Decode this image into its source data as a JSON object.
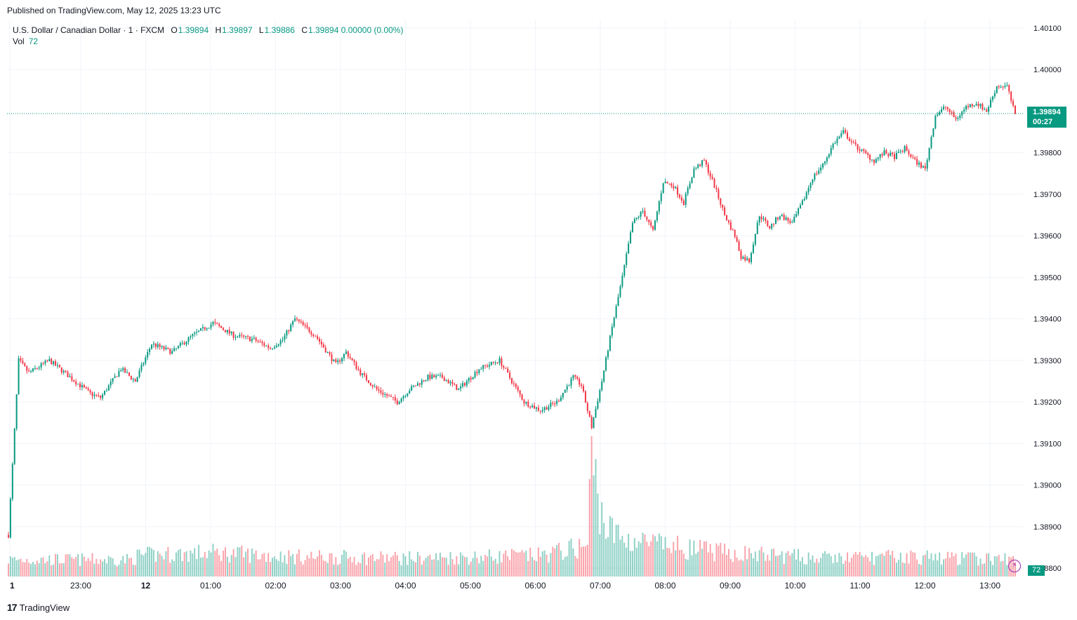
{
  "header": {
    "published": "Published on TradingView.com, May 12, 2025 13:23 UTC"
  },
  "legend": {
    "symbol": "U.S. Dollar / Canadian Dollar · 1 · FXCM",
    "o_label": "O",
    "o": "1.39894",
    "h_label": "H",
    "h": "1.39897",
    "l_label": "L",
    "l": "1.39886",
    "c_label": "C",
    "c": "1.39894",
    "change": "0.00000 (0.00%)",
    "vol_label": "Vol",
    "vol": "72"
  },
  "price_tag": {
    "price": "1.39894",
    "countdown": "00:27"
  },
  "volume_tag": "72",
  "brand": {
    "name": "TradingView",
    "logo": "17"
  },
  "colors": {
    "up": "#089981",
    "down": "#f23645",
    "grid": "#f0f3fa",
    "axis_text": "#131722"
  },
  "chart_data": {
    "type": "candlestick",
    "title": "U.S. Dollar / Canadian Dollar · 1 · FXCM",
    "ylim": [
      1.3878,
      1.4012
    ],
    "y_ticks": [
      "1.40100",
      "1.40000",
      "1.39800",
      "1.39700",
      "1.39600",
      "1.39500",
      "1.39400",
      "1.39300",
      "1.39200",
      "1.39100",
      "1.39000",
      "1.38900",
      "1.38800"
    ],
    "x_ticks": [
      "1",
      "23:00",
      "12",
      "01:00",
      "02:00",
      "03:00",
      "04:00",
      "05:00",
      "06:00",
      "07:00",
      "08:00",
      "09:00",
      "10:00",
      "11:00",
      "12:00",
      "13:00"
    ],
    "last_price": 1.39894,
    "path": [
      [
        0,
        1.3888
      ],
      [
        5,
        1.393
      ],
      [
        10,
        1.3927
      ],
      [
        20,
        1.393
      ],
      [
        30,
        1.3926
      ],
      [
        40,
        1.3922
      ],
      [
        45,
        1.3921
      ],
      [
        55,
        1.3928
      ],
      [
        62,
        1.3925
      ],
      [
        70,
        1.3934
      ],
      [
        80,
        1.3932
      ],
      [
        90,
        1.3936
      ],
      [
        100,
        1.3939
      ],
      [
        110,
        1.3936
      ],
      [
        120,
        1.3935
      ],
      [
        128,
        1.3933
      ],
      [
        134,
        1.3935
      ],
      [
        140,
        1.394
      ],
      [
        150,
        1.3936
      ],
      [
        160,
        1.3929
      ],
      [
        165,
        1.3932
      ],
      [
        172,
        1.3927
      ],
      [
        180,
        1.3923
      ],
      [
        190,
        1.392
      ],
      [
        196,
        1.3923
      ],
      [
        205,
        1.3926
      ],
      [
        212,
        1.3926
      ],
      [
        220,
        1.3923
      ],
      [
        230,
        1.3928
      ],
      [
        240,
        1.393
      ],
      [
        246,
        1.3925
      ],
      [
        252,
        1.392
      ],
      [
        260,
        1.3918
      ],
      [
        268,
        1.392
      ],
      [
        276,
        1.3926
      ],
      [
        280,
        1.3924
      ],
      [
        285,
        1.3914
      ],
      [
        290,
        1.3925
      ],
      [
        295,
        1.3938
      ],
      [
        300,
        1.395
      ],
      [
        305,
        1.3963
      ],
      [
        310,
        1.3966
      ],
      [
        315,
        1.3961
      ],
      [
        320,
        1.3973
      ],
      [
        325,
        1.3972
      ],
      [
        330,
        1.3968
      ],
      [
        335,
        1.3976
      ],
      [
        340,
        1.3978
      ],
      [
        345,
        1.3972
      ],
      [
        350,
        1.3965
      ],
      [
        355,
        1.396
      ],
      [
        358,
        1.3955
      ],
      [
        362,
        1.3954
      ],
      [
        367,
        1.3965
      ],
      [
        372,
        1.3962
      ],
      [
        377,
        1.3965
      ],
      [
        383,
        1.3963
      ],
      [
        388,
        1.3968
      ],
      [
        393,
        1.3974
      ],
      [
        398,
        1.3977
      ],
      [
        403,
        1.3982
      ],
      [
        408,
        1.3985
      ],
      [
        413,
        1.3982
      ],
      [
        418,
        1.398
      ],
      [
        423,
        1.3978
      ],
      [
        428,
        1.398
      ],
      [
        433,
        1.3979
      ],
      [
        438,
        1.3981
      ],
      [
        443,
        1.3978
      ],
      [
        448,
        1.3976
      ],
      [
        453,
        1.3989
      ],
      [
        458,
        1.3991
      ],
      [
        463,
        1.3988
      ],
      [
        468,
        1.3991
      ],
      [
        473,
        1.3992
      ],
      [
        478,
        1.399
      ],
      [
        483,
        1.3996
      ],
      [
        488,
        1.3996
      ],
      [
        492,
        1.3989
      ]
    ],
    "volume_profile": [
      [
        0,
        0.12
      ],
      [
        60,
        0.12
      ],
      [
        64,
        0.15
      ],
      [
        100,
        0.17
      ],
      [
        140,
        0.14
      ],
      [
        200,
        0.13
      ],
      [
        260,
        0.15
      ],
      [
        283,
        0.22
      ],
      [
        285,
        0.9
      ],
      [
        288,
        0.55
      ],
      [
        292,
        0.35
      ],
      [
        300,
        0.27
      ],
      [
        320,
        0.22
      ],
      [
        350,
        0.17
      ],
      [
        400,
        0.13
      ],
      [
        440,
        0.14
      ],
      [
        493,
        0.12
      ]
    ]
  }
}
